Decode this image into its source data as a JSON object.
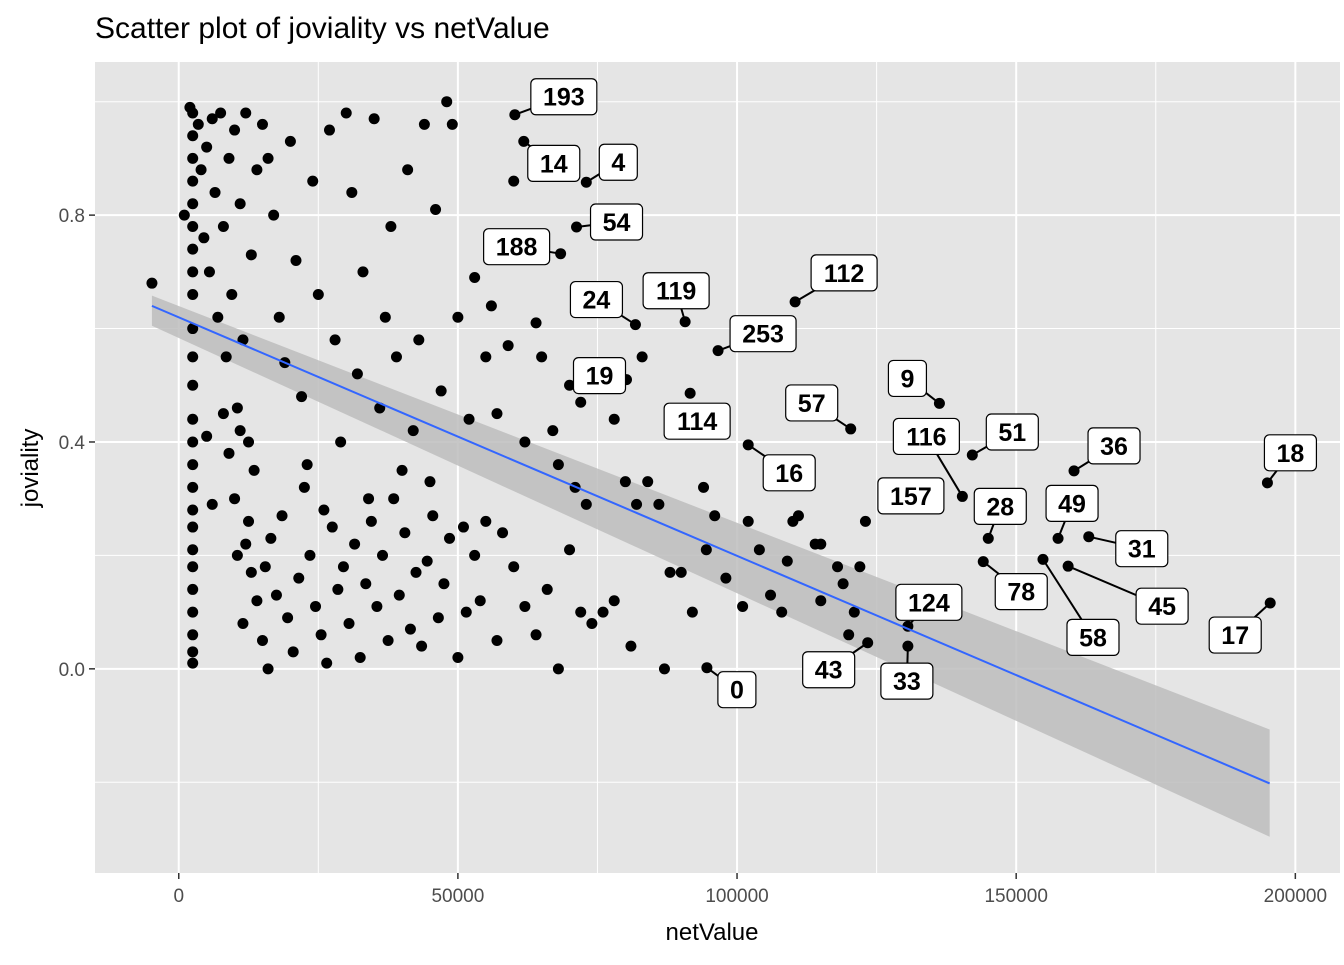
{
  "chart_data": {
    "type": "scatter",
    "title": "Scatter plot of joviality vs netValue",
    "xlabel": "netValue",
    "ylabel": "joviality",
    "xlim": [
      -15000,
      208000
    ],
    "ylim": [
      -0.36,
      1.07
    ],
    "xticks": [
      0,
      50000,
      100000,
      150000,
      200000
    ],
    "xtick_labels": [
      "0",
      "50000",
      "100000",
      "150000",
      "200000"
    ],
    "yticks": [
      0.0,
      0.4,
      0.8
    ],
    "ytick_labels": [
      "0.0",
      "0.4",
      "0.8"
    ],
    "grid": true,
    "colors": {
      "panel": "#e5e5e5",
      "grid": "#ffffff",
      "point": "#000000",
      "line": "#3366ff",
      "band": "#bdbdbd"
    },
    "regression": {
      "x": [
        -4800,
        195400
      ],
      "y": [
        0.64,
        -0.202
      ],
      "band_lower": [
        0.605,
        -0.296
      ],
      "band_upper": [
        0.658,
        -0.107
      ]
    },
    "points": [
      [
        -4800,
        0.68
      ],
      [
        2500,
        0.01
      ],
      [
        2500,
        0.03
      ],
      [
        2500,
        0.06
      ],
      [
        2500,
        0.1
      ],
      [
        2500,
        0.14
      ],
      [
        2500,
        0.18
      ],
      [
        2500,
        0.21
      ],
      [
        2500,
        0.25
      ],
      [
        2500,
        0.28
      ],
      [
        2500,
        0.32
      ],
      [
        2500,
        0.36
      ],
      [
        2500,
        0.4
      ],
      [
        2500,
        0.44
      ],
      [
        2500,
        0.5
      ],
      [
        2500,
        0.55
      ],
      [
        2500,
        0.6
      ],
      [
        2500,
        0.66
      ],
      [
        2500,
        0.7
      ],
      [
        2500,
        0.74
      ],
      [
        2500,
        0.78
      ],
      [
        2500,
        0.82
      ],
      [
        2500,
        0.86
      ],
      [
        2500,
        0.9
      ],
      [
        2500,
        0.94
      ],
      [
        2500,
        0.98
      ],
      [
        1000,
        0.8
      ],
      [
        2000,
        0.99
      ],
      [
        3500,
        0.96
      ],
      [
        4000,
        0.88
      ],
      [
        4500,
        0.76
      ],
      [
        5000,
        0.92
      ],
      [
        5500,
        0.7
      ],
      [
        6000,
        0.97
      ],
      [
        6500,
        0.84
      ],
      [
        7000,
        0.62
      ],
      [
        7500,
        0.98
      ],
      [
        8000,
        0.78
      ],
      [
        8500,
        0.55
      ],
      [
        9000,
        0.9
      ],
      [
        9500,
        0.66
      ],
      [
        10000,
        0.95
      ],
      [
        10500,
        0.46
      ],
      [
        11000,
        0.82
      ],
      [
        11500,
        0.58
      ],
      [
        12000,
        0.98
      ],
      [
        12500,
        0.4
      ],
      [
        13000,
        0.73
      ],
      [
        13500,
        0.35
      ],
      [
        14000,
        0.88
      ],
      [
        5000,
        0.41
      ],
      [
        6000,
        0.29
      ],
      [
        8000,
        0.45
      ],
      [
        9000,
        0.38
      ],
      [
        10000,
        0.3
      ],
      [
        11000,
        0.42
      ],
      [
        12000,
        0.22
      ],
      [
        13000,
        0.17
      ],
      [
        14000,
        0.12
      ],
      [
        15000,
        0.05
      ],
      [
        16000,
        0.0
      ],
      [
        10500,
        0.2
      ],
      [
        11500,
        0.08
      ],
      [
        12500,
        0.26
      ],
      [
        15000,
        0.96
      ],
      [
        16000,
        0.9
      ],
      [
        17000,
        0.8
      ],
      [
        18000,
        0.62
      ],
      [
        19000,
        0.54
      ],
      [
        20000,
        0.93
      ],
      [
        21000,
        0.72
      ],
      [
        22000,
        0.48
      ],
      [
        23000,
        0.36
      ],
      [
        24000,
        0.86
      ],
      [
        25000,
        0.66
      ],
      [
        26000,
        0.28
      ],
      [
        27000,
        0.95
      ],
      [
        28000,
        0.58
      ],
      [
        15500,
        0.18
      ],
      [
        16500,
        0.23
      ],
      [
        17500,
        0.13
      ],
      [
        18500,
        0.27
      ],
      [
        19500,
        0.09
      ],
      [
        20500,
        0.03
      ],
      [
        21500,
        0.16
      ],
      [
        22500,
        0.32
      ],
      [
        23500,
        0.2
      ],
      [
        24500,
        0.11
      ],
      [
        25500,
        0.06
      ],
      [
        26500,
        0.01
      ],
      [
        27500,
        0.25
      ],
      [
        28500,
        0.14
      ],
      [
        29000,
        0.4
      ],
      [
        30000,
        0.98
      ],
      [
        31000,
        0.84
      ],
      [
        32000,
        0.52
      ],
      [
        33000,
        0.7
      ],
      [
        34000,
        0.3
      ],
      [
        35000,
        0.97
      ],
      [
        36000,
        0.46
      ],
      [
        37000,
        0.62
      ],
      [
        38000,
        0.78
      ],
      [
        39000,
        0.55
      ],
      [
        40000,
        0.35
      ],
      [
        41000,
        0.88
      ],
      [
        42000,
        0.42
      ],
      [
        29500,
        0.18
      ],
      [
        30500,
        0.08
      ],
      [
        31500,
        0.22
      ],
      [
        32500,
        0.02
      ],
      [
        33500,
        0.15
      ],
      [
        34500,
        0.26
      ],
      [
        35500,
        0.11
      ],
      [
        36500,
        0.2
      ],
      [
        37500,
        0.05
      ],
      [
        38500,
        0.3
      ],
      [
        39500,
        0.13
      ],
      [
        40500,
        0.24
      ],
      [
        41500,
        0.07
      ],
      [
        42500,
        0.17
      ],
      [
        43000,
        0.58
      ],
      [
        44000,
        0.96
      ],
      [
        45000,
        0.33
      ],
      [
        46000,
        0.81
      ],
      [
        47000,
        0.49
      ],
      [
        48000,
        1.0
      ],
      [
        49000,
        0.96
      ],
      [
        50000,
        0.62
      ],
      [
        51000,
        0.25
      ],
      [
        52000,
        0.44
      ],
      [
        53000,
        0.69
      ],
      [
        54000,
        0.12
      ],
      [
        55000,
        0.55
      ],
      [
        56000,
        0.64
      ],
      [
        43500,
        0.04
      ],
      [
        44500,
        0.19
      ],
      [
        45500,
        0.27
      ],
      [
        46500,
        0.09
      ],
      [
        47500,
        0.15
      ],
      [
        48500,
        0.23
      ],
      [
        50000,
        0.02
      ],
      [
        51500,
        0.1
      ],
      [
        53000,
        0.2
      ],
      [
        55000,
        0.26
      ],
      [
        57000,
        0.05
      ],
      [
        58000,
        0.24
      ],
      [
        60000,
        0.18
      ],
      [
        62000,
        0.11
      ],
      [
        57000,
        0.45
      ],
      [
        59000,
        0.57
      ],
      [
        60000,
        0.86
      ],
      [
        62000,
        0.4
      ],
      [
        64000,
        0.61
      ],
      [
        65000,
        0.55
      ],
      [
        67000,
        0.42
      ],
      [
        68000,
        0.36
      ],
      [
        70000,
        0.5
      ],
      [
        71000,
        0.32
      ],
      [
        72000,
        0.47
      ],
      [
        73000,
        0.29
      ],
      [
        74000,
        0.54
      ],
      [
        76000,
        0.1
      ],
      [
        64000,
        0.06
      ],
      [
        66000,
        0.14
      ],
      [
        68000,
        0.0
      ],
      [
        70000,
        0.21
      ],
      [
        72000,
        0.1
      ],
      [
        74000,
        0.08
      ],
      [
        78000,
        0.12
      ],
      [
        80000,
        0.33
      ],
      [
        81000,
        0.04
      ],
      [
        82000,
        0.29
      ],
      [
        84000,
        0.33
      ],
      [
        86000,
        0.29
      ],
      [
        87000,
        0.0
      ],
      [
        88000,
        0.17
      ],
      [
        78000,
        0.44
      ],
      [
        83000,
        0.55
      ],
      [
        90000,
        0.17
      ],
      [
        92000,
        0.1
      ],
      [
        94000,
        0.32
      ],
      [
        94500,
        0.21
      ],
      [
        96000,
        0.27
      ],
      [
        98000,
        0.16
      ],
      [
        101000,
        0.11
      ],
      [
        102000,
        0.26
      ],
      [
        104000,
        0.21
      ],
      [
        106000,
        0.13
      ],
      [
        108000,
        0.1
      ],
      [
        110000,
        0.26
      ],
      [
        109000,
        0.19
      ],
      [
        111000,
        0.27
      ],
      [
        114000,
        0.22
      ],
      [
        115000,
        0.22
      ],
      [
        115000,
        0.12
      ],
      [
        118000,
        0.18
      ],
      [
        119000,
        0.15
      ],
      [
        121000,
        0.1
      ],
      [
        122000,
        0.18
      ],
      [
        123000,
        0.26
      ],
      [
        120000,
        0.06
      ]
    ],
    "labeled_points": [
      {
        "label": "193",
        "x": 60200,
        "y": 0.977
      },
      {
        "label": "14",
        "x": 61800,
        "y": 0.93
      },
      {
        "label": "4",
        "x": 73000,
        "y": 0.858
      },
      {
        "label": "54",
        "x": 71250,
        "y": 0.779
      },
      {
        "label": "188",
        "x": 68400,
        "y": 0.732
      },
      {
        "label": "24",
        "x": 81800,
        "y": 0.607
      },
      {
        "label": "119",
        "x": 90700,
        "y": 0.612
      },
      {
        "label": "112",
        "x": 110400,
        "y": 0.647
      },
      {
        "label": "253",
        "x": 96600,
        "y": 0.561
      },
      {
        "label": "19",
        "x": 80200,
        "y": 0.51
      },
      {
        "label": "114",
        "x": 91600,
        "y": 0.486
      },
      {
        "label": "9",
        "x": 136250,
        "y": 0.468
      },
      {
        "label": "57",
        "x": 120360,
        "y": 0.423
      },
      {
        "label": "16",
        "x": 102000,
        "y": 0.395
      },
      {
        "label": "116",
        "x": 140360,
        "y": 0.304
      },
      {
        "label": "51",
        "x": 142140,
        "y": 0.377
      },
      {
        "label": "157",
        "x": 131500,
        "y": 0.305
      },
      {
        "label": "36",
        "x": 160360,
        "y": 0.349
      },
      {
        "label": "18",
        "x": 195000,
        "y": 0.328
      },
      {
        "label": "28",
        "x": 145000,
        "y": 0.23
      },
      {
        "label": "49",
        "x": 157500,
        "y": 0.23
      },
      {
        "label": "31",
        "x": 163000,
        "y": 0.233
      },
      {
        "label": "78",
        "x": 144100,
        "y": 0.189
      },
      {
        "label": "58",
        "x": 154800,
        "y": 0.193
      },
      {
        "label": "45",
        "x": 159300,
        "y": 0.181
      },
      {
        "label": "17",
        "x": 195500,
        "y": 0.116
      },
      {
        "label": "124",
        "x": 130600,
        "y": 0.075
      },
      {
        "label": "33",
        "x": 130600,
        "y": 0.04
      },
      {
        "label": "43",
        "x": 123400,
        "y": 0.046
      },
      {
        "label": "0",
        "x": 94600,
        "y": 0.002
      }
    ]
  }
}
